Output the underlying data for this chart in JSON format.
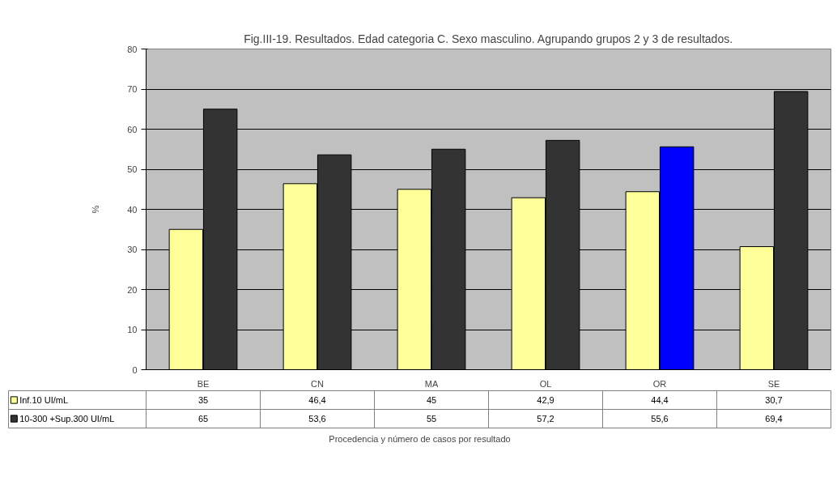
{
  "chart_data": {
    "type": "bar",
    "title": "Fig.III-19. Resultados. Edad categoria C. Sexo masculino. Agrupando grupos 2 y 3 de resultados.",
    "annotations": [
      "Procedencia y número de casos por resultado"
    ],
    "ylabel": "%",
    "categories": [
      "BE",
      "CN",
      "MA",
      "OL",
      "OR",
      "SE"
    ],
    "series": [
      {
        "name": "Inf.10 UI/mL",
        "color": "#ffff99",
        "values": [
          35,
          46.4,
          45,
          42.9,
          44.4,
          30.7
        ],
        "value_labels": [
          "35",
          "46,4",
          "45",
          "42,9",
          "44,4",
          "30,7"
        ]
      },
      {
        "name": "10-300 +Sup.300 UI/mL",
        "color": "#333333",
        "colors": [
          "#333333",
          "#333333",
          "#333333",
          "#333333",
          "#0000ff",
          "#333333"
        ],
        "values": [
          65,
          53.6,
          55,
          57.2,
          55.6,
          69.4
        ],
        "value_labels": [
          "65",
          "53,6",
          "55",
          "57,2",
          "55,6",
          "69,4"
        ]
      }
    ],
    "ylim": [
      0,
      80
    ],
    "yticks": [
      0,
      10,
      20,
      30,
      40,
      50,
      60,
      70,
      80
    ],
    "grid": "y",
    "legend": "bottom left"
  }
}
